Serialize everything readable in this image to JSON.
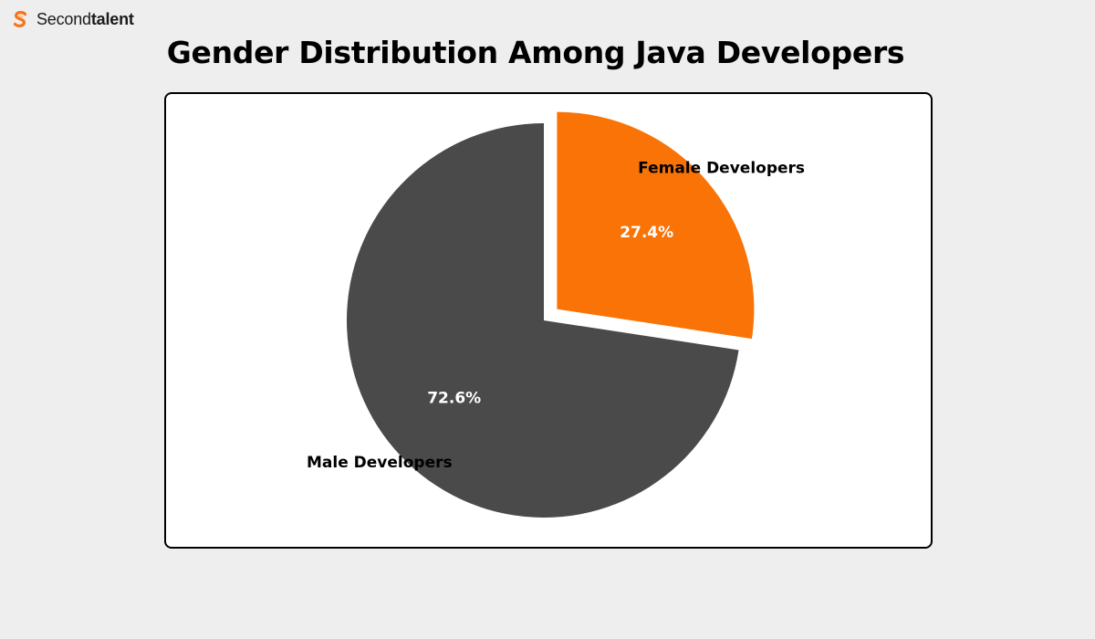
{
  "brand": {
    "name_regular": "Second",
    "name_bold": "talent",
    "icon": "secondtalent-s-logo-icon",
    "color": "#f97316"
  },
  "page_title": "Gender Distribution Among Java Developers",
  "chart_data": {
    "type": "pie",
    "title": "Gender Distribution Among Java Developers",
    "slices": [
      {
        "label": "Female Developers",
        "value": 27.4,
        "display": "27.4%",
        "color": "#f97306",
        "exploded": true
      },
      {
        "label": "Male Developers",
        "value": 72.6,
        "display": "72.6%",
        "color": "#4a4a4a",
        "exploded": false
      }
    ],
    "start": "top, clockwise",
    "legend": "none"
  }
}
